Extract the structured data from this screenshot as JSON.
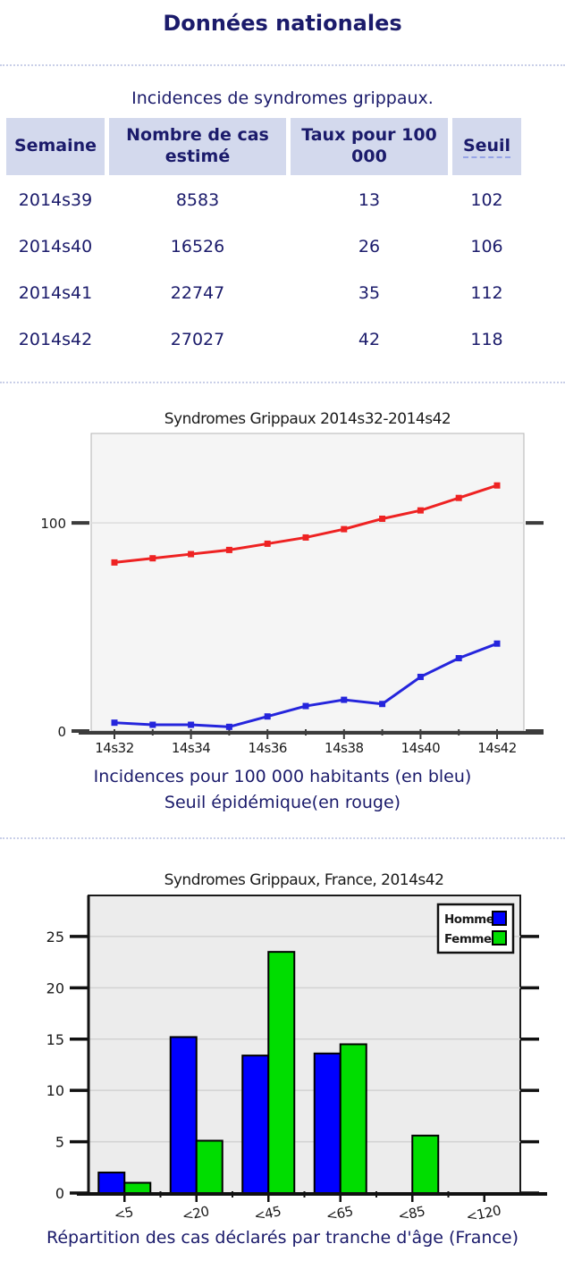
{
  "page": {
    "title": "Données nationales",
    "table_caption": "Incidences de syndromes grippaux.",
    "chart1_caption_line1": "Incidences pour 100 000 habitants (en bleu)",
    "chart1_caption_line2": "Seuil épidémique(en rouge)",
    "chart2_caption": "Répartition des cas déclarés par tranche d'âge (France)"
  },
  "colors": {
    "text_navy": "#1b1b6b",
    "table_header_bg": "#d3d9ed",
    "incidence_blue": "#2525dc",
    "seuil_red": "#ee2222",
    "bar_homme_blue": "#0000ff",
    "bar_femme_green": "#00dd00"
  },
  "table": {
    "headers": [
      "Semaine",
      "Nombre de cas estimé",
      "Taux pour 100 000",
      "Seuil"
    ],
    "rows": [
      [
        "2014s39",
        "8583",
        "13",
        "102"
      ],
      [
        "2014s40",
        "16526",
        "26",
        "106"
      ],
      [
        "2014s41",
        "22747",
        "35",
        "112"
      ],
      [
        "2014s42",
        "27027",
        "42",
        "118"
      ]
    ]
  },
  "chart_data": [
    {
      "type": "line",
      "title": "Syndromes Grippaux 2014s32-2014s42",
      "x": [
        "14s32",
        "14s33",
        "14s34",
        "14s35",
        "14s36",
        "14s37",
        "14s38",
        "14s39",
        "14s40",
        "14s41",
        "14s42"
      ],
      "labeled_every": 2,
      "series": [
        {
          "name": "Seuil épidémique",
          "color": "#ee2222",
          "values": [
            81,
            83,
            85,
            87,
            90,
            93,
            97,
            102,
            106,
            112,
            118
          ]
        },
        {
          "name": "Incidences pour 100 000 habitants",
          "color": "#2525dc",
          "values": [
            4,
            3,
            3,
            2,
            7,
            12,
            15,
            13,
            26,
            35,
            42
          ]
        }
      ],
      "ylim": [
        0,
        143
      ],
      "yticks": [
        0,
        100
      ],
      "grid": "horizontal-at-ticks",
      "legend_position": "none"
    },
    {
      "type": "bar",
      "title": "Syndromes Grippaux, France, 2014s42",
      "categories": [
        "<5",
        "<20",
        "<45",
        "<65",
        "<85",
        "<120"
      ],
      "series": [
        {
          "name": "Homme",
          "color": "#0000ff",
          "values": [
            2.0,
            15.2,
            13.4,
            13.6,
            0,
            0
          ]
        },
        {
          "name": "Femme",
          "color": "#00dd00",
          "values": [
            1.0,
            5.1,
            23.5,
            14.5,
            5.6,
            0
          ]
        }
      ],
      "ylim": [
        0,
        29
      ],
      "yticks": [
        0,
        5,
        10,
        15,
        20,
        25
      ],
      "grid": "horizontal-at-ticks",
      "legend_position": "top-right"
    }
  ]
}
